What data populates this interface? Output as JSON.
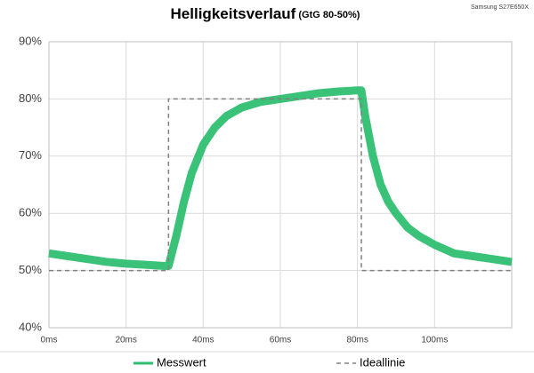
{
  "chart_data": {
    "type": "line",
    "title": "Helligkeitsverlauf",
    "subtitle": "(GtG 80-50%)",
    "annotation": "Samsung S27E650X",
    "xlim": [
      0,
      120
    ],
    "xticks": [
      {
        "value": 0,
        "label": "0ms"
      },
      {
        "value": 20,
        "label": "20ms"
      },
      {
        "value": 40,
        "label": "40ms"
      },
      {
        "value": 60,
        "label": "60ms"
      },
      {
        "value": 80,
        "label": "80ms"
      },
      {
        "value": 100,
        "label": "100ms"
      }
    ],
    "ylim": [
      40,
      90
    ],
    "yticks": [
      {
        "value": 40,
        "label": "40%"
      },
      {
        "value": 50,
        "label": "50%"
      },
      {
        "value": 60,
        "label": "60%"
      },
      {
        "value": 70,
        "label": "70%"
      },
      {
        "value": 80,
        "label": "80%"
      },
      {
        "value": 90,
        "label": "90%"
      }
    ],
    "grid": true,
    "legend": "bottom",
    "series": [
      {
        "name": "Messwert",
        "color": "#2fbf71",
        "dash": false,
        "x": [
          0,
          5,
          10,
          15,
          20,
          25,
          30,
          31,
          33,
          35,
          37,
          40,
          43,
          46,
          50,
          55,
          60,
          65,
          70,
          75,
          80,
          81,
          82,
          84,
          86,
          88,
          90,
          93,
          96,
          100,
          105,
          110,
          115,
          120
        ],
        "values": [
          53,
          52.5,
          52,
          51.5,
          51.2,
          51,
          50.8,
          50.8,
          56,
          62,
          67,
          72,
          75,
          77,
          78.5,
          79.5,
          80,
          80.5,
          81,
          81.3,
          81.5,
          81.5,
          77,
          70,
          65,
          62,
          60,
          57.5,
          56,
          54.5,
          53,
          52.5,
          52,
          51.5
        ]
      },
      {
        "name": "Ideallinie",
        "color": "#808080",
        "dash": true,
        "x": [
          0,
          31,
          31,
          81,
          81,
          120
        ],
        "values": [
          50,
          50,
          80,
          80,
          50,
          50
        ]
      }
    ]
  }
}
